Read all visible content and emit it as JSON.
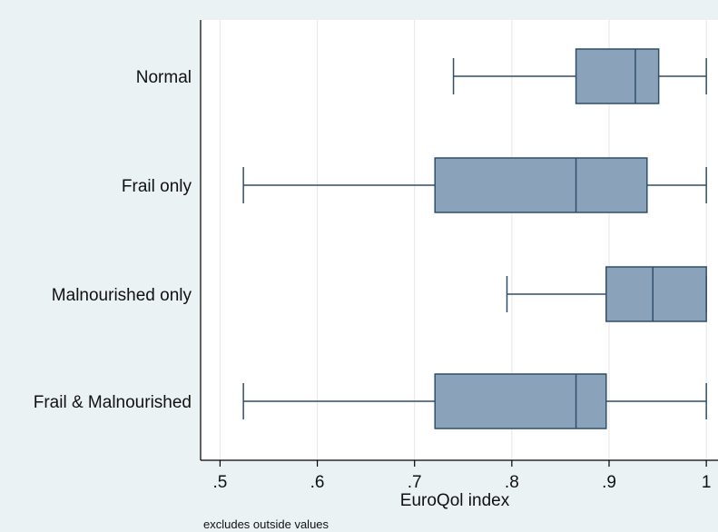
{
  "chart_data": {
    "type": "boxplot",
    "orientation": "horizontal",
    "categories": [
      "Normal",
      "Frail only",
      "Malnourished only",
      "Frail & Malnourished"
    ],
    "boxes": [
      {
        "category": "Normal",
        "min": 0.74,
        "q1": 0.866,
        "median": 0.927,
        "q3": 0.951,
        "max": 1.0
      },
      {
        "category": "Frail only",
        "min": 0.524,
        "q1": 0.721,
        "median": 0.866,
        "q3": 0.939,
        "max": 1.0
      },
      {
        "category": "Malnourished only",
        "min": 0.795,
        "q1": 0.897,
        "median": 0.945,
        "q3": 1.0,
        "max": 1.0
      },
      {
        "category": "Frail & Malnourished",
        "min": 0.524,
        "q1": 0.721,
        "median": 0.866,
        "q3": 0.897,
        "max": 1.0
      }
    ],
    "xlabel": "EuroQol index",
    "xticks": [
      0.5,
      0.6,
      0.7,
      0.8,
      0.9,
      1.0
    ],
    "xtick_labels": [
      ".5",
      ".6",
      ".7",
      ".8",
      ".9",
      "1"
    ],
    "xlim": [
      0.48,
      1.012
    ],
    "note": "excludes outside values",
    "grid": true,
    "colors": {
      "box_fill": "#8aa3bb",
      "box_stroke": "#2f4e6a",
      "plot_background": "#ffffff",
      "outer_background": "#eaf2f3",
      "grid": "#e6e6e6"
    }
  }
}
